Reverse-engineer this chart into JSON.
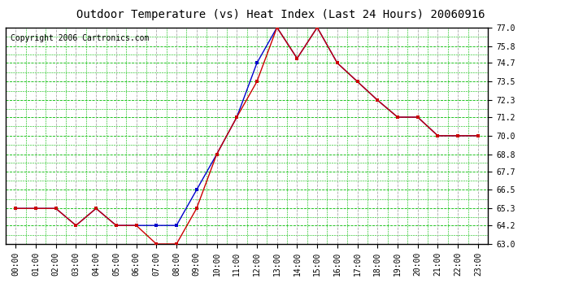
{
  "title": "Outdoor Temperature (vs) Heat Index (Last 24 Hours) 20060916",
  "copyright": "Copyright 2006 Cartronics.com",
  "x_labels": [
    "00:00",
    "01:00",
    "02:00",
    "03:00",
    "04:00",
    "05:00",
    "06:00",
    "07:00",
    "08:00",
    "09:00",
    "10:00",
    "11:00",
    "12:00",
    "13:00",
    "14:00",
    "15:00",
    "16:00",
    "17:00",
    "18:00",
    "19:00",
    "20:00",
    "21:00",
    "22:00",
    "23:00"
  ],
  "temp_data": [
    65.3,
    65.3,
    65.3,
    64.2,
    65.3,
    64.2,
    64.2,
    63.0,
    63.0,
    65.3,
    68.8,
    71.2,
    73.5,
    77.0,
    75.0,
    77.0,
    74.7,
    73.5,
    72.3,
    71.2,
    71.2,
    70.0,
    70.0,
    70.0
  ],
  "heat_data": [
    65.3,
    65.3,
    65.3,
    64.2,
    65.3,
    64.2,
    64.2,
    64.2,
    64.2,
    66.5,
    68.8,
    71.2,
    74.7,
    77.0,
    75.0,
    77.0,
    74.7,
    73.5,
    72.3,
    71.2,
    71.2,
    70.0,
    70.0,
    70.0
  ],
  "temp_color": "#cc0000",
  "heat_color": "#0000cc",
  "bg_color": "#ffffff",
  "plot_bg": "#ffffff",
  "green_grid_color": "#00bb00",
  "gray_grid_color": "#aaaaaa",
  "ylim_min": 63.0,
  "ylim_max": 77.0,
  "yticks": [
    63.0,
    64.2,
    65.3,
    66.5,
    67.7,
    68.8,
    70.0,
    71.2,
    72.3,
    73.5,
    74.7,
    75.8,
    77.0
  ],
  "title_fontsize": 10,
  "copyright_fontsize": 7,
  "tick_fontsize": 7,
  "marker_size": 3
}
